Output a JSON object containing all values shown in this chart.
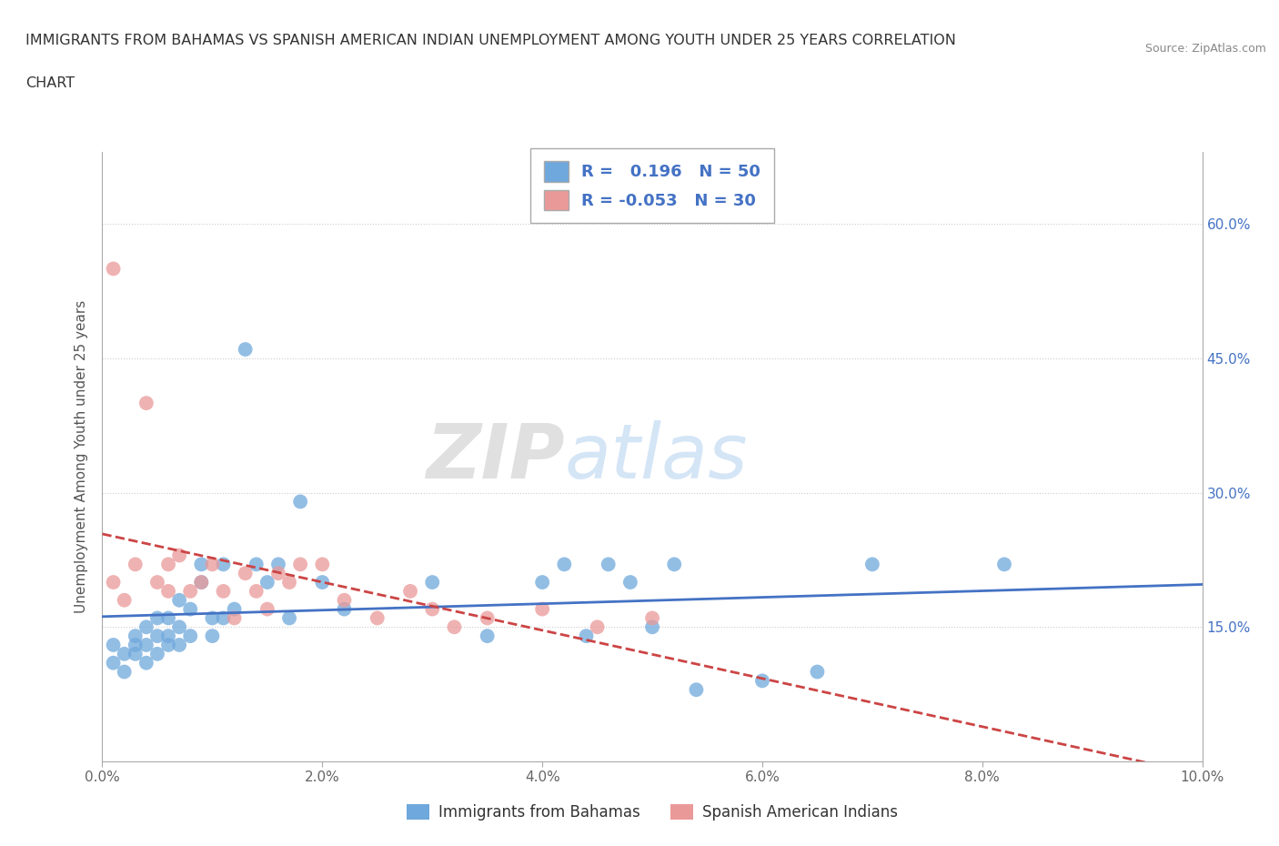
{
  "title_line1": "IMMIGRANTS FROM BAHAMAS VS SPANISH AMERICAN INDIAN UNEMPLOYMENT AMONG YOUTH UNDER 25 YEARS CORRELATION",
  "title_line2": "CHART",
  "source": "Source: ZipAtlas.com",
  "ylabel": "Unemployment Among Youth under 25 years",
  "xlim": [
    0.0,
    0.1
  ],
  "ylim": [
    0.0,
    0.68
  ],
  "yticks": [
    0.15,
    0.3,
    0.45,
    0.6
  ],
  "ytick_labels": [
    "15.0%",
    "30.0%",
    "45.0%",
    "60.0%"
  ],
  "xticks": [
    0.0,
    0.02,
    0.04,
    0.06,
    0.08,
    0.1
  ],
  "xtick_labels": [
    "0.0%",
    "2.0%",
    "4.0%",
    "6.0%",
    "8.0%",
    "10.0%"
  ],
  "blue_color": "#6fa8dc",
  "pink_color": "#ea9999",
  "blue_line_color": "#4472c4",
  "pink_line_color": "#cc4444",
  "R_blue": 0.196,
  "N_blue": 50,
  "R_pink": -0.053,
  "N_pink": 30,
  "legend_label_blue": "Immigrants from Bahamas",
  "legend_label_pink": "Spanish American Indians",
  "watermark_zip": "ZIP",
  "watermark_atlas": "atlas",
  "blue_scatter_x": [
    0.001,
    0.001,
    0.002,
    0.002,
    0.003,
    0.003,
    0.003,
    0.004,
    0.004,
    0.004,
    0.005,
    0.005,
    0.005,
    0.006,
    0.006,
    0.006,
    0.007,
    0.007,
    0.007,
    0.008,
    0.008,
    0.009,
    0.009,
    0.01,
    0.01,
    0.011,
    0.011,
    0.012,
    0.013,
    0.014,
    0.015,
    0.016,
    0.017,
    0.018,
    0.02,
    0.022,
    0.03,
    0.035,
    0.04,
    0.042,
    0.044,
    0.046,
    0.048,
    0.05,
    0.052,
    0.054,
    0.06,
    0.065,
    0.07,
    0.082
  ],
  "blue_scatter_y": [
    0.13,
    0.11,
    0.12,
    0.1,
    0.14,
    0.13,
    0.12,
    0.15,
    0.13,
    0.11,
    0.14,
    0.12,
    0.16,
    0.14,
    0.16,
    0.13,
    0.18,
    0.15,
    0.13,
    0.17,
    0.14,
    0.2,
    0.22,
    0.16,
    0.14,
    0.16,
    0.22,
    0.17,
    0.46,
    0.22,
    0.2,
    0.22,
    0.16,
    0.29,
    0.2,
    0.17,
    0.2,
    0.14,
    0.2,
    0.22,
    0.14,
    0.22,
    0.2,
    0.15,
    0.22,
    0.08,
    0.09,
    0.1,
    0.22,
    0.22
  ],
  "pink_scatter_x": [
    0.001,
    0.001,
    0.002,
    0.003,
    0.004,
    0.005,
    0.006,
    0.006,
    0.007,
    0.008,
    0.009,
    0.01,
    0.011,
    0.012,
    0.013,
    0.014,
    0.015,
    0.016,
    0.017,
    0.018,
    0.02,
    0.022,
    0.025,
    0.028,
    0.03,
    0.032,
    0.035,
    0.04,
    0.045,
    0.05
  ],
  "pink_scatter_y": [
    0.55,
    0.2,
    0.18,
    0.22,
    0.4,
    0.2,
    0.19,
    0.22,
    0.23,
    0.19,
    0.2,
    0.22,
    0.19,
    0.16,
    0.21,
    0.19,
    0.17,
    0.21,
    0.2,
    0.22,
    0.22,
    0.18,
    0.16,
    0.19,
    0.17,
    0.15,
    0.16,
    0.17,
    0.15,
    0.16
  ],
  "background_color": "#ffffff",
  "grid_color": "#cccccc"
}
